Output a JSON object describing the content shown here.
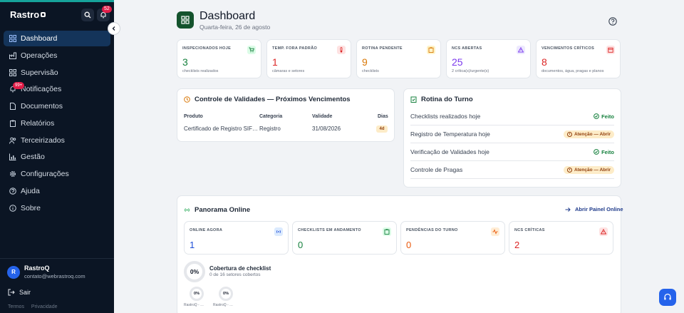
{
  "sidebar": {
    "brand": "Rastro",
    "notif_badge": "52",
    "nav_badge": "99+",
    "items": [
      {
        "label": "Dashboard",
        "icon": "grid-icon"
      },
      {
        "label": "Operações",
        "icon": "factory-icon"
      },
      {
        "label": "Supervisão",
        "icon": "grid-icon"
      },
      {
        "label": "Notificações",
        "icon": "bell-icon"
      },
      {
        "label": "Documentos",
        "icon": "document-icon"
      },
      {
        "label": "Relatórios",
        "icon": "clipboard-icon"
      },
      {
        "label": "Terceirizados",
        "icon": "users-icon"
      },
      {
        "label": "Gestão",
        "icon": "chart-icon"
      },
      {
        "label": "Configurações",
        "icon": "gear-icon"
      },
      {
        "label": "Ajuda",
        "icon": "help-icon"
      },
      {
        "label": "Sobre",
        "icon": "info-icon"
      }
    ],
    "user": {
      "initial": "R",
      "name": "RastroQ",
      "email": "contato@webrastroq.com"
    },
    "logout": "Sair",
    "footer": {
      "terms": "Termos",
      "privacy": "Privacidade"
    }
  },
  "header": {
    "title": "Dashboard",
    "subtitle": "Quarta-feira, 26 de agosto"
  },
  "stats": [
    {
      "label": "INSPECIONADOS HOJE",
      "value": "3",
      "sub": "checklists realizados",
      "color": "#15803d",
      "icon": "cart-icon"
    },
    {
      "label": "TEMP. FORA PADRÃO",
      "value": "1",
      "sub": "câmaras e setores",
      "color": "#dc2626",
      "icon": "thermometer-icon"
    },
    {
      "label": "ROTINA PENDENTE",
      "value": "9",
      "sub": "checklists",
      "color": "#d97706",
      "icon": "clipboard-icon"
    },
    {
      "label": "NCS ABERTAS",
      "value": "25",
      "sub": "2 crítica(s)/urgente(s)",
      "color": "#7c3aed",
      "icon": "warning-icon"
    },
    {
      "label": "VENCIMENTOS CRÍTICOS",
      "value": "8",
      "sub": "documentos, água, pragas e planos",
      "color": "#dc2626",
      "icon": "calendar-icon"
    }
  ],
  "validades": {
    "title": "Controle de Validades — Próximos Vencimentos",
    "headers": {
      "produto": "Produto",
      "categoria": "Categoria",
      "validade": "Validade",
      "dias": "Dias"
    },
    "row": {
      "produto": "Certificado de Registro SIF…",
      "categoria": "Registro",
      "validade": "31/08/2026",
      "dias": "4d"
    }
  },
  "rotina": {
    "title": "Rotina do Turno",
    "rows": [
      {
        "label": "Checklists realizados hoje",
        "status": "Feito",
        "type": "ok"
      },
      {
        "label": "Registro de Temperatura hoje",
        "status": "Atenção — Abrir",
        "type": "warn"
      },
      {
        "label": "Verificação de Validades hoje",
        "status": "Feito",
        "type": "ok"
      },
      {
        "label": "Controle de Pragas",
        "status": "Atenção — Abrir",
        "type": "warn"
      }
    ]
  },
  "panorama": {
    "title": "Panorama Online",
    "open_link": "Abrir Painel Online",
    "cards": [
      {
        "label": "ONLINE AGORA",
        "value": "1",
        "color": "#1d4ed8",
        "icon": "radio-icon"
      },
      {
        "label": "CHECKLISTS EM ANDAMENTO",
        "value": "0",
        "color": "#15803d",
        "icon": "clipboard-icon"
      },
      {
        "label": "PENDÊNCIAS DO TURNO",
        "value": "0",
        "color": "#ea580c",
        "icon": "activity-icon"
      },
      {
        "label": "NCS CRÍTICAS",
        "value": "2",
        "color": "#dc2626",
        "icon": "warning-icon"
      }
    ],
    "coverage": {
      "percent": "0%",
      "title": "Cobertura de checklist",
      "sub": "0 de 16 setores cobertos"
    },
    "mini": [
      {
        "percent": "0%",
        "label": "RastroQ - …"
      },
      {
        "percent": "0%",
        "label": "RastroQ - …"
      }
    ]
  }
}
